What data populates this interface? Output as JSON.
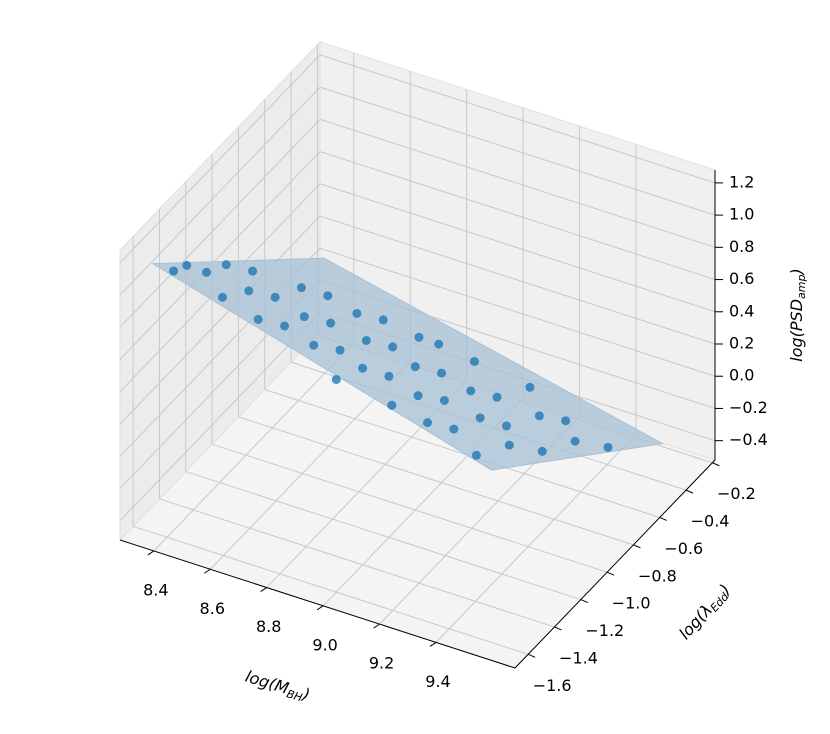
{
  "chart_data": {
    "type": "scatter3d",
    "xlabel": {
      "text": "log(M",
      "sub": "BH",
      "end": ")"
    },
    "ylabel": {
      "text": "log(λ",
      "sub": "Edd",
      "end": ")"
    },
    "zlabel": {
      "text": "log(PSD",
      "sub": "amp",
      "end": ")"
    },
    "xlim": [
      8.28,
      9.68
    ],
    "ylim": [
      -1.7,
      -0.18
    ],
    "zlim": [
      -0.52,
      1.28
    ],
    "xticks": [
      8.4,
      8.6,
      8.8,
      {
        "value": 9,
        "label": "9.0"
      },
      9.2,
      9.4
    ],
    "yticks": [
      {
        "value": -1.6,
        "label": "−1.6"
      },
      {
        "value": -1.4,
        "label": "−1.4"
      },
      {
        "value": -1.2,
        "label": "−1.2"
      },
      {
        "value": -1.0,
        "label": "−1.0"
      },
      {
        "value": -0.8,
        "label": "−0.8"
      },
      {
        "value": -0.6,
        "label": "−0.6"
      },
      {
        "value": -0.4,
        "label": "−0.4"
      },
      {
        "value": -0.2,
        "label": "−0.2"
      }
    ],
    "zticks": [
      {
        "value": -0.4,
        "label": "−0.4"
      },
      {
        "value": -0.2,
        "label": "−0.2"
      },
      {
        "value": 0,
        "label": "0.0"
      },
      0.2,
      0.4,
      0.6,
      0.8,
      {
        "value": 1,
        "label": "1.0"
      },
      1.2
    ],
    "grid": true,
    "color": "#1f77b4",
    "x": [
      8.4,
      8.4,
      8.4,
      8.4,
      8.4,
      8.55,
      8.55,
      8.55,
      8.55,
      8.55,
      8.7,
      8.7,
      8.7,
      8.7,
      8.7,
      8.7,
      8.85,
      8.85,
      8.85,
      8.85,
      8.85,
      8.85,
      9.0,
      9.0,
      9.0,
      9.0,
      9.0,
      9.0,
      9.15,
      9.15,
      9.15,
      9.15,
      9.15,
      9.15,
      9.3,
      9.3,
      9.3,
      9.3,
      9.3,
      9.3,
      9.45,
      9.45,
      9.45,
      9.45,
      9.45
    ],
    "y": [
      -1.55,
      -1.45,
      -1.3,
      -1.15,
      -0.95,
      -1.5,
      -1.3,
      -1.1,
      -0.9,
      -0.7,
      -1.55,
      -1.35,
      -1.2,
      -1.0,
      -0.8,
      -0.6,
      -1.45,
      -1.25,
      -1.05,
      -0.85,
      -0.65,
      -0.5,
      -1.6,
      -1.4,
      -1.2,
      -1.0,
      -0.8,
      -0.55,
      -1.5,
      -1.3,
      -1.1,
      -0.9,
      -0.7,
      -0.45,
      -1.55,
      -1.35,
      -1.15,
      -0.95,
      -0.7,
      -0.5,
      -1.5,
      -1.25,
      -1.0,
      -0.75,
      -0.5
    ],
    "z": [
      1.09,
      1.04,
      0.87,
      0.79,
      0.58,
      0.97,
      0.84,
      0.63,
      0.52,
      0.3,
      0.96,
      0.75,
      0.68,
      0.47,
      0.36,
      0.15,
      0.8,
      0.6,
      0.49,
      0.28,
      0.17,
      0.0,
      0.8,
      0.7,
      0.48,
      0.37,
      0.16,
      0.02,
      0.64,
      0.53,
      0.33,
      0.22,
      0.01,
      -0.14,
      0.66,
      0.45,
      0.35,
      0.13,
      -0.02,
      -0.22,
      0.5,
      0.35,
      0.1,
      -0.05,
      -0.3
    ],
    "surface": {
      "x": [
        8.35,
        9.55
      ],
      "y": [
        -1.6,
        -0.3
      ],
      "z": [
        [
          1.15,
          0.08
        ],
        [
          0.55,
          -0.39
        ]
      ],
      "color": "#a7c0d6"
    }
  }
}
